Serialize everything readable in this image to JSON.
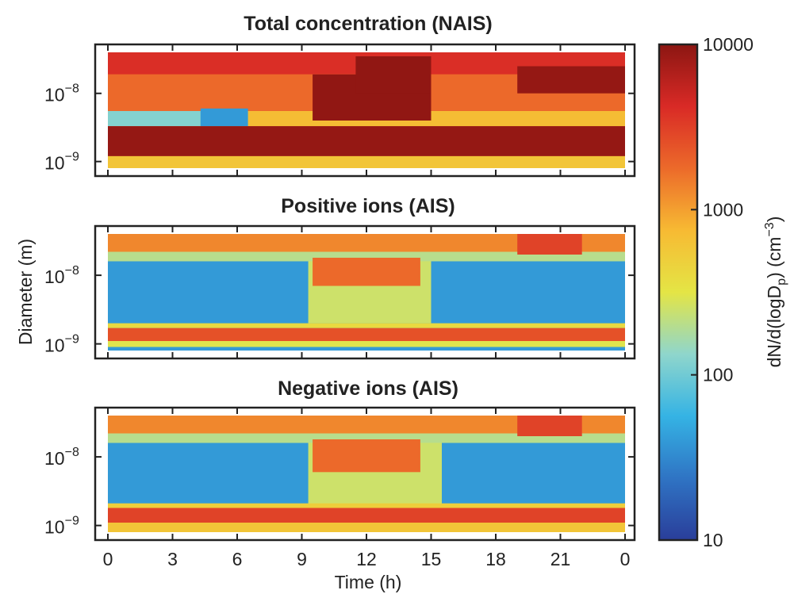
{
  "chart_data": {
    "type": "heatmap",
    "xlabel": "Time (h)",
    "ylabel": "Diameter (m)",
    "x_ticks": [
      "0",
      "3",
      "6",
      "9",
      "12",
      "15",
      "18",
      "21",
      "0"
    ],
    "x_tick_hours": [
      0,
      3,
      6,
      9,
      12,
      15,
      18,
      21,
      24
    ],
    "xlim": [
      0,
      24
    ],
    "yscale": "log",
    "ylim": [
      8e-10,
      4e-08
    ],
    "y_ticks": [
      {
        "base": "10",
        "exp": "−9",
        "value": 1e-09
      },
      {
        "base": "10",
        "exp": "−8",
        "value": 1e-08
      }
    ],
    "colorbar": {
      "label_parts": [
        "dN/d(logD",
        "p",
        ") (cm",
        "−3",
        ")"
      ],
      "scale": "log",
      "range": [
        10,
        10000
      ],
      "ticks": [
        "10",
        "100",
        "1000",
        "10000"
      ],
      "tick_values": [
        10,
        100,
        1000,
        10000
      ],
      "colors": [
        "#2a3e9a",
        "#2f74c4",
        "#35b3e4",
        "#8fd6cc",
        "#e4e545",
        "#f7ba33",
        "#ec6a2a",
        "#d92a26",
        "#8c1612"
      ]
    },
    "panels": [
      {
        "title": "Total concentration (NAIS)",
        "regions": [
          {
            "from": 1e-09,
            "to": 4e-08,
            "t0": 0,
            "t1": 24,
            "v": 1500
          },
          {
            "from": 1.9e-08,
            "to": 4e-08,
            "t0": 0,
            "t1": 24,
            "v": 4000
          },
          {
            "from": 5.5e-09,
            "to": 1.9e-08,
            "t0": 0,
            "t1": 24,
            "v": 1800
          },
          {
            "from": 3.3e-09,
            "to": 5.5e-09,
            "t0": 0,
            "t1": 24,
            "v": 700
          },
          {
            "from": 3.3e-09,
            "to": 5.5e-09,
            "t0": 0,
            "t1": 6.5,
            "v": 120
          },
          {
            "from": 3.3e-09,
            "to": 6e-09,
            "t0": 4.3,
            "t1": 6.5,
            "v": 40
          },
          {
            "from": 1.2e-09,
            "to": 3.3e-09,
            "t0": 0,
            "t1": 24,
            "v": 9000
          },
          {
            "from": 8e-10,
            "to": 1.2e-09,
            "t0": 0,
            "t1": 24,
            "v": 600
          },
          {
            "from": 4e-09,
            "to": 1.9e-08,
            "t0": 9.5,
            "t1": 15,
            "v": 9500
          },
          {
            "from": 1e-08,
            "to": 3.5e-08,
            "t0": 11.5,
            "t1": 15,
            "v": 9500
          },
          {
            "from": 1e-08,
            "to": 2.5e-08,
            "t0": 19,
            "t1": 24,
            "v": 9000
          }
        ]
      },
      {
        "title": "Positive ions (AIS)",
        "regions": [
          {
            "from": 8e-10,
            "to": 4e-08,
            "t0": 0,
            "t1": 24,
            "v": 40
          },
          {
            "from": 2.2e-08,
            "to": 4e-08,
            "t0": 0,
            "t1": 24,
            "v": 1300
          },
          {
            "from": 1.6e-08,
            "to": 2.2e-08,
            "t0": 0,
            "t1": 24,
            "v": 200
          },
          {
            "from": 2e-09,
            "to": 1.6e-08,
            "t0": 9.3,
            "t1": 15,
            "v": 250
          },
          {
            "from": 7e-09,
            "to": 1.8e-08,
            "t0": 9.5,
            "t1": 14.5,
            "v": 1800
          },
          {
            "from": 2e-08,
            "to": 4e-08,
            "t0": 19,
            "t1": 22,
            "v": 3000
          },
          {
            "from": 1.7e-09,
            "to": 2e-09,
            "t0": 0,
            "t1": 24,
            "v": 400
          },
          {
            "from": 1.1e-09,
            "to": 1.7e-09,
            "t0": 0,
            "t1": 24,
            "v": 2500
          },
          {
            "from": 9e-10,
            "to": 1.1e-09,
            "t0": 0,
            "t1": 24,
            "v": 300
          }
        ]
      },
      {
        "title": "Negative ions (AIS)",
        "regions": [
          {
            "from": 8e-10,
            "to": 4e-08,
            "t0": 0,
            "t1": 24,
            "v": 40
          },
          {
            "from": 2.2e-08,
            "to": 4e-08,
            "t0": 0,
            "t1": 24,
            "v": 1300
          },
          {
            "from": 1.6e-08,
            "to": 2.2e-08,
            "t0": 0,
            "t1": 24,
            "v": 200
          },
          {
            "from": 2e-09,
            "to": 1.6e-08,
            "t0": 9.3,
            "t1": 15.5,
            "v": 250
          },
          {
            "from": 6e-09,
            "to": 1.8e-08,
            "t0": 9.5,
            "t1": 14.5,
            "v": 1800
          },
          {
            "from": 2e-08,
            "to": 4e-08,
            "t0": 19,
            "t1": 22,
            "v": 3000
          },
          {
            "from": 1.8e-09,
            "to": 2.1e-09,
            "t0": 0,
            "t1": 24,
            "v": 500
          },
          {
            "from": 1.1e-09,
            "to": 1.8e-09,
            "t0": 0,
            "t1": 24,
            "v": 3000
          },
          {
            "from": 8e-10,
            "to": 1.1e-09,
            "t0": 0,
            "t1": 24,
            "v": 600
          }
        ]
      }
    ]
  }
}
